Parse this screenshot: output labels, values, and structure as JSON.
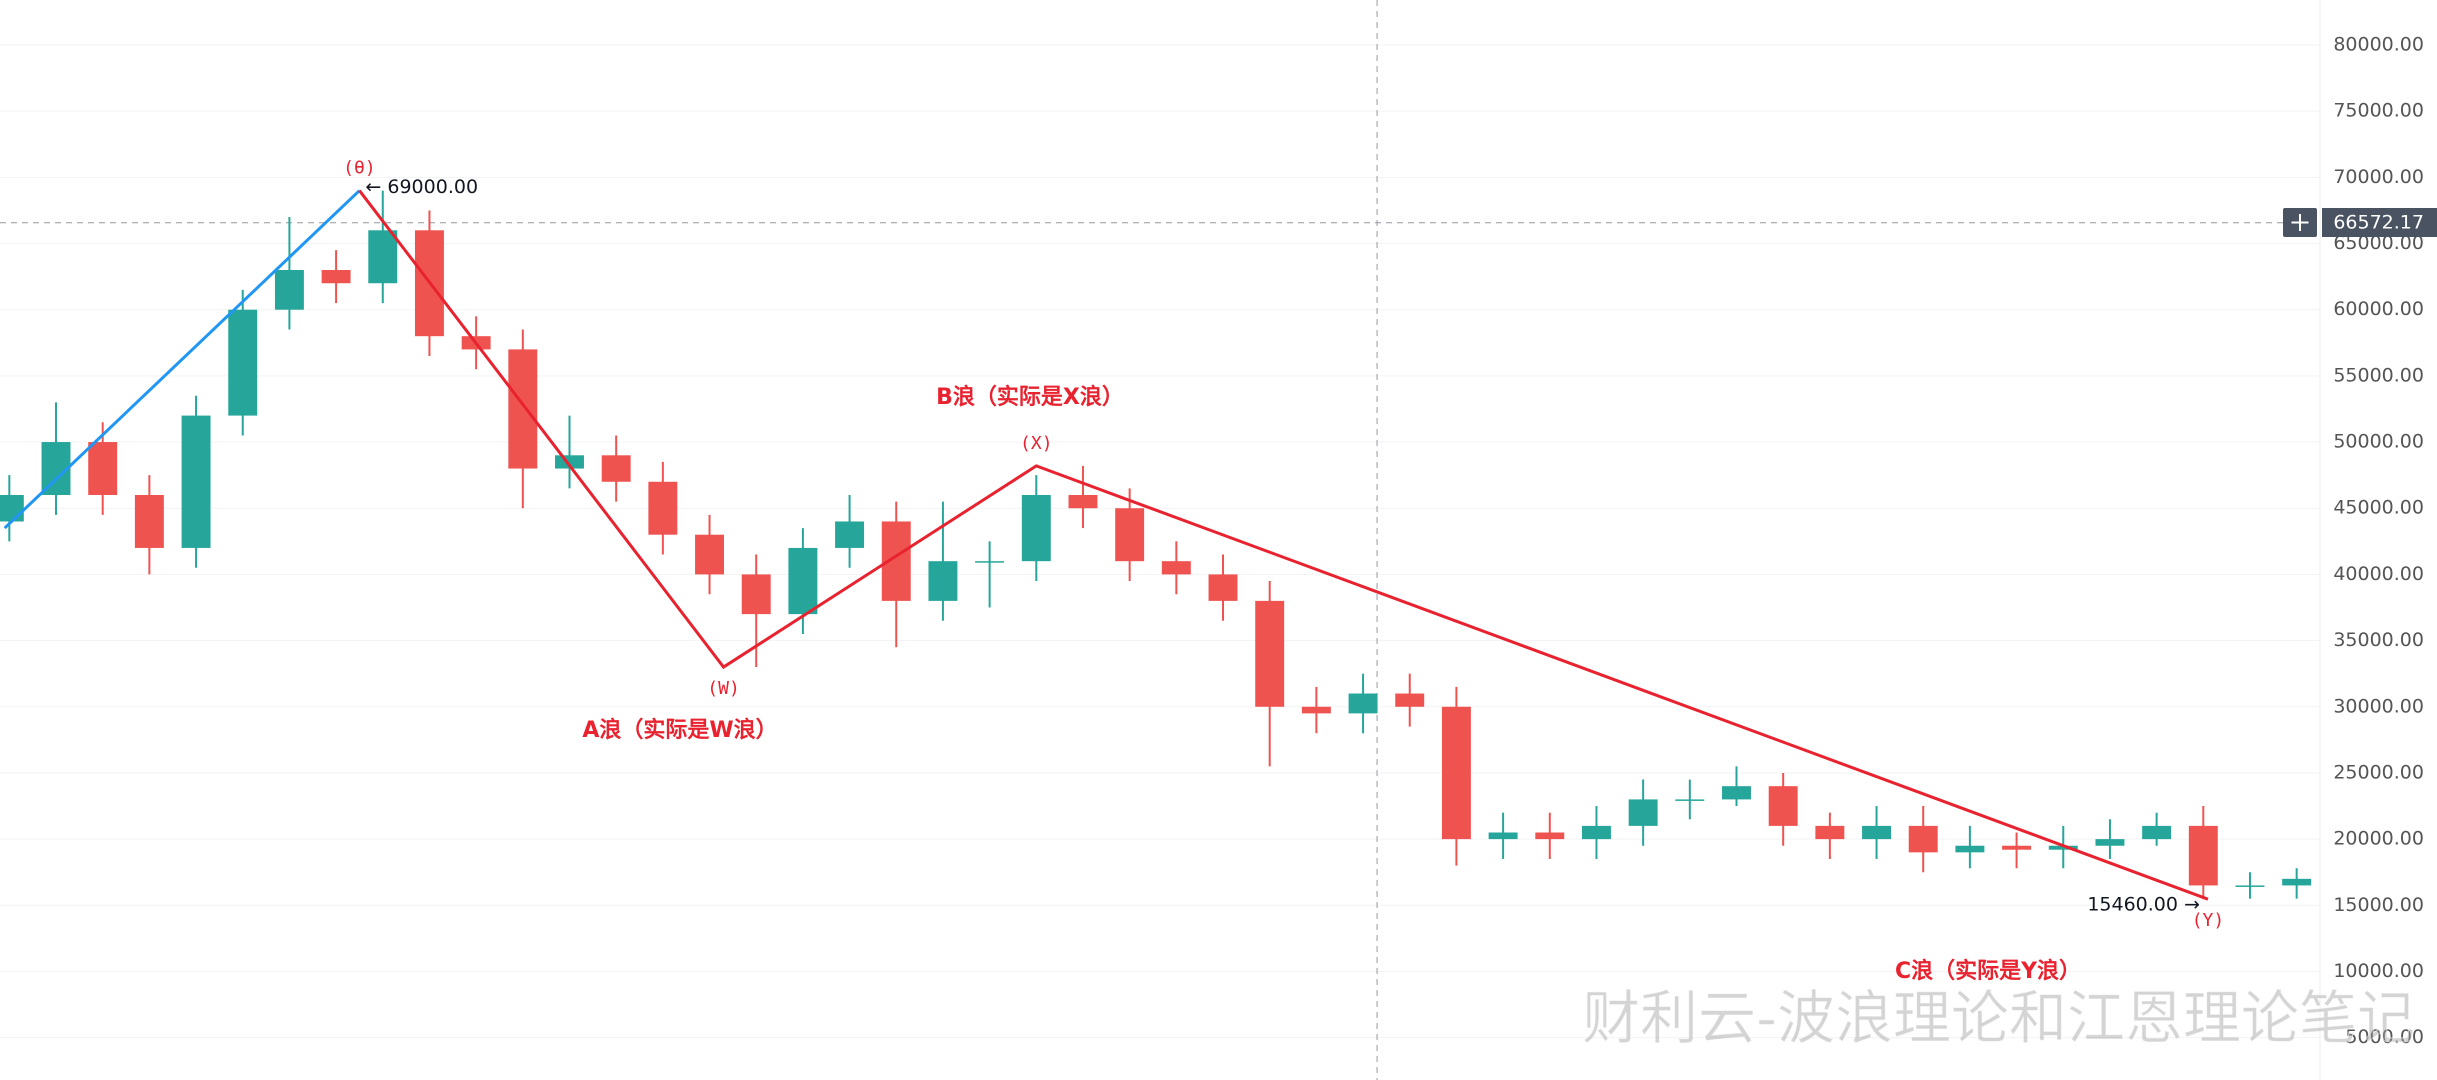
{
  "chart_data": {
    "type": "candlestick",
    "x": [
      0,
      1,
      2,
      3,
      4,
      5,
      6,
      7,
      8,
      9,
      10,
      11,
      12,
      13,
      14,
      15,
      16,
      17,
      18,
      19,
      20,
      21,
      22,
      23,
      24,
      25,
      26,
      27,
      28,
      29,
      30,
      31,
      32,
      33,
      34,
      35,
      36,
      37,
      38,
      39,
      40,
      41,
      42,
      43,
      44,
      45,
      46,
      47,
      48,
      49
    ],
    "open": [
      44000,
      46000,
      50000,
      46000,
      42000,
      52000,
      60000,
      63000,
      62000,
      66000,
      58000,
      57000,
      48000,
      49000,
      47000,
      43000,
      40000,
      37000,
      42000,
      44000,
      38000,
      41000,
      41000,
      46000,
      45000,
      41000,
      40000,
      38000,
      30000,
      29500,
      31000,
      30000,
      20000,
      20500,
      20000,
      21000,
      23000,
      23000,
      24000,
      21000,
      20000,
      21000,
      19000,
      19500,
      19200,
      19500,
      20000,
      21000,
      16500,
      16500
    ],
    "high": [
      47500,
      53000,
      51500,
      47500,
      53500,
      61500,
      67000,
      64500,
      69000,
      67500,
      59500,
      58500,
      52000,
      50500,
      48500,
      44500,
      41500,
      43500,
      46000,
      45500,
      45500,
      42500,
      47500,
      48200,
      46500,
      42500,
      41500,
      39500,
      31500,
      32500,
      32500,
      31500,
      22000,
      22000,
      22500,
      24500,
      24500,
      25500,
      25000,
      22000,
      22500,
      22500,
      21000,
      20500,
      21000,
      21500,
      22000,
      22500,
      17500,
      17800
    ],
    "low": [
      42500,
      44500,
      44500,
      40000,
      40500,
      50500,
      58500,
      60500,
      60500,
      56500,
      55500,
      45000,
      46500,
      45500,
      41500,
      38500,
      33000,
      35500,
      40500,
      34500,
      36500,
      37500,
      39500,
      43500,
      39500,
      38500,
      36500,
      25500,
      28000,
      28000,
      28500,
      18000,
      18500,
      18500,
      18500,
      19500,
      21500,
      22500,
      19500,
      18500,
      18500,
      17500,
      17800,
      17800,
      17800,
      18500,
      19500,
      15460,
      15500,
      15500
    ],
    "close": [
      46000,
      50000,
      46000,
      42000,
      52000,
      60000,
      63000,
      62000,
      66000,
      58000,
      57000,
      48000,
      49000,
      47000,
      43000,
      40000,
      37000,
      42000,
      44000,
      38000,
      41000,
      41000,
      46000,
      45000,
      41000,
      40000,
      38000,
      30000,
      29500,
      31000,
      30000,
      20000,
      20500,
      20000,
      21000,
      23000,
      23000,
      24000,
      21000,
      20000,
      21000,
      19000,
      19500,
      19200,
      19500,
      20000,
      21000,
      16500,
      16500,
      17000
    ],
    "up_color": "#26a69a",
    "down_color": "#ef5350",
    "xlim": [
      -0.2,
      49.5
    ],
    "ylim": [
      1800,
      83400
    ],
    "yticks": [
      {
        "value": 5000,
        "label": "5000.00"
      },
      {
        "value": 10000,
        "label": "10000.00"
      },
      {
        "value": 15000,
        "label": "15000.00"
      },
      {
        "value": 20000,
        "label": "20000.00"
      },
      {
        "value": 25000,
        "label": "25000.00"
      },
      {
        "value": 30000,
        "label": "30000.00"
      },
      {
        "value": 35000,
        "label": "35000.00"
      },
      {
        "value": 40000,
        "label": "40000.00"
      },
      {
        "value": 45000,
        "label": "45000.00"
      },
      {
        "value": 50000,
        "label": "50000.00"
      },
      {
        "value": 55000,
        "label": "55000.00"
      },
      {
        "value": 60000,
        "label": "60000.00"
      },
      {
        "value": 65000,
        "label": "65000.00"
      },
      {
        "value": 70000,
        "label": "70000.00"
      },
      {
        "value": 75000,
        "label": "75000.00"
      },
      {
        "value": 80000,
        "label": "80000.00"
      }
    ],
    "grid": true,
    "lines": [
      {
        "color": "#2196f3",
        "x": [
          -0.1,
          7.5
        ],
        "y": [
          43500,
          69000
        ]
      },
      {
        "color": "#e8232f",
        "x": [
          7.5,
          15.3,
          22.0,
          47.1
        ],
        "y": [
          69000,
          33000,
          48200,
          15460
        ]
      }
    ],
    "pivot_labels": [
      "(θ)",
      "(W)",
      "(X)",
      "(Y)"
    ],
    "price_labels": [
      {
        "value": 69000,
        "label": "← 69000.00"
      },
      {
        "value": 15460,
        "label": "15460.00 →"
      }
    ],
    "wave_names": [
      "A浪（实际是W浪）",
      "B浪（实际是X浪）",
      "C浪（实际是Y浪）"
    ],
    "crosshair": {
      "x": 29.3,
      "value": 66572.17,
      "label": "66572.17"
    },
    "watermark": "财利云-波浪理论和江恩理论笔记"
  }
}
